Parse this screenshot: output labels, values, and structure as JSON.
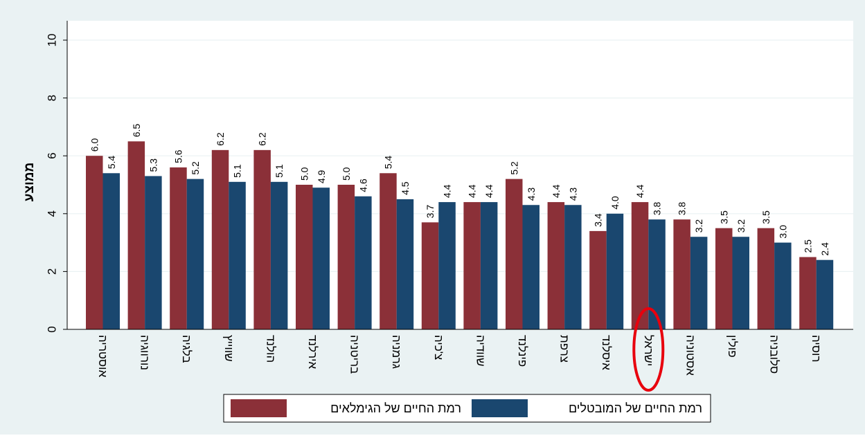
{
  "chart_data": {
    "type": "bar",
    "ylabel": "ממוצע",
    "ylim": [
      0,
      10
    ],
    "yticks": [
      0,
      2,
      4,
      6,
      8,
      10
    ],
    "categories": [
      "אוסטריה",
      "נורווגיה",
      "בלגיה",
      "שווייץ",
      "הולנד",
      "אירלנד",
      "בריטניה",
      "גרמניה",
      "צ'כיה",
      "שוודיה",
      "פינלנד",
      "צרפת",
      "איסלנד",
      "ישראל",
      "אסטוניה",
      "פולין",
      "סלובניה",
      "רוסיה"
    ],
    "series": [
      {
        "name": "רמת החיים של הגימלאים",
        "color": "#8B3038",
        "values": [
          6.0,
          6.5,
          5.6,
          6.2,
          6.2,
          5.0,
          5.0,
          5.4,
          3.7,
          4.4,
          5.2,
          4.4,
          3.4,
          4.4,
          3.8,
          3.5,
          3.5,
          2.5
        ]
      },
      {
        "name": "רמת החיים של המובטלים",
        "color": "#1A476F",
        "values": [
          5.4,
          5.3,
          5.2,
          5.1,
          5.1,
          4.9,
          4.6,
          4.5,
          4.4,
          4.4,
          4.3,
          4.3,
          4.0,
          3.8,
          3.2,
          3.2,
          3.0,
          2.4
        ]
      }
    ],
    "highlight_category": "ישראל",
    "highlight_color": "#E8000D",
    "legend_position": "bottom",
    "grid": true,
    "outer_background": "#EAF2F3",
    "plot_background": "#FFFFFF"
  }
}
